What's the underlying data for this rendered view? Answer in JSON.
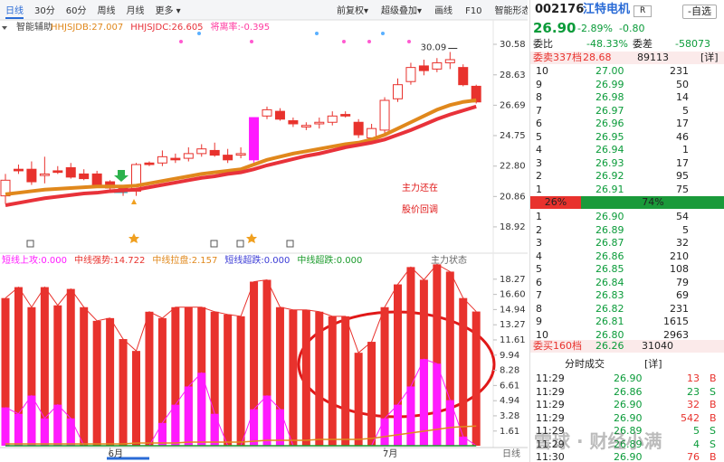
{
  "toolbar": {
    "left": [
      "日线",
      "30分",
      "60分",
      "周线",
      "月线",
      "更多 ▾"
    ],
    "right": [
      "前复权▾",
      "超级叠加▾",
      "画线",
      "F10",
      "智能形态"
    ]
  },
  "chart_data": [
    {
      "type": "candlestick",
      "header": "智能辅助",
      "color": "#e8322d",
      "hollow_up": true,
      "categories": [
        null,
        null,
        null,
        null,
        null,
        null,
        null,
        null,
        "6月",
        null,
        null,
        null,
        null,
        null,
        null,
        null,
        null,
        null,
        null,
        null,
        null,
        null,
        null,
        null,
        null,
        null,
        null,
        null,
        null,
        "7月",
        null,
        null,
        null,
        null,
        null,
        null,
        null
      ],
      "open": [
        20.9,
        22.6,
        22.6,
        22.2,
        22.5,
        22.7,
        22.3,
        22.3,
        21.8,
        21.4,
        21.2,
        23.0,
        23.0,
        23.3,
        23.3,
        23.6,
        23.8,
        23.5,
        23.5,
        23.2,
        26.0,
        26.3,
        25.7,
        25.3,
        25.5,
        25.6,
        26.1,
        25.6,
        24.6,
        25.1,
        27.1,
        28.2,
        29.2,
        29.0,
        29.4,
        29.1,
        27.9
      ],
      "high": [
        22.3,
        22.9,
        23.1,
        23.4,
        22.8,
        23.0,
        22.6,
        22.5,
        21.9,
        21.6,
        23.0,
        23.1,
        23.8,
        23.6,
        24.0,
        24.2,
        24.3,
        23.9,
        24.0,
        25.9,
        26.6,
        26.5,
        25.9,
        25.6,
        25.9,
        26.3,
        26.3,
        25.8,
        25.5,
        27.2,
        28.4,
        29.4,
        29.6,
        29.7,
        30.09,
        29.3,
        28.0
      ],
      "low": [
        20.4,
        22.3,
        21.6,
        21.7,
        22.3,
        22.0,
        21.9,
        21.5,
        21.2,
        20.9,
        20.9,
        22.8,
        22.8,
        23.0,
        23.1,
        23.4,
        23.4,
        23.0,
        23.3,
        23.0,
        25.8,
        25.7,
        25.3,
        25.1,
        25.2,
        25.4,
        25.9,
        24.6,
        24.5,
        24.9,
        26.9,
        28.0,
        28.6,
        28.8,
        29.0,
        27.9,
        26.8
      ],
      "close": [
        21.9,
        22.5,
        21.8,
        22.3,
        22.4,
        22.1,
        22.0,
        21.6,
        21.4,
        21.3,
        22.9,
        22.9,
        23.4,
        23.2,
        23.6,
        23.9,
        23.5,
        23.2,
        23.6,
        25.9,
        26.4,
        25.8,
        25.5,
        25.4,
        25.6,
        26.0,
        26.0,
        24.8,
        25.2,
        27.0,
        28.0,
        29.1,
        28.9,
        29.4,
        29.6,
        28.0,
        26.9
      ],
      "colors": [
        "#e8322d",
        "#e8322d",
        "#e8322d",
        "#e8322d",
        "#e8322d",
        "#e8322d",
        "#e8322d",
        "#e8322d",
        "#e8322d",
        "#e8322d",
        "#e8322d",
        "#e8322d",
        "#e8322d",
        "#e8322d",
        "#e8322d",
        "#e8322d",
        "#e8322d",
        "#e8322d",
        "#e8322d",
        "#ff1aff",
        "#e8322d",
        "#e8322d",
        "#e8322d",
        "#e8322d",
        "#e8322d",
        "#e8322d",
        "#e8322d",
        "#e8322d",
        "#e8322d",
        "#e8322d",
        "#e8322d",
        "#e8322d",
        "#e8322d",
        "#e8322d",
        "#e8322d",
        "#e8322d",
        "#e8322d"
      ],
      "lines": [
        {
          "name": "HHJSJDB:27.007",
          "color": "#e0881c",
          "values": [
            21.0,
            21.1,
            21.2,
            21.3,
            21.35,
            21.4,
            21.45,
            21.5,
            21.5,
            21.5,
            21.55,
            21.7,
            21.85,
            22.0,
            22.15,
            22.3,
            22.4,
            22.5,
            22.6,
            22.9,
            23.2,
            23.4,
            23.6,
            23.75,
            23.9,
            24.05,
            24.2,
            24.3,
            24.5,
            24.8,
            25.2,
            25.6,
            26.0,
            26.4,
            26.7,
            26.9,
            27.007
          ]
        },
        {
          "name": "HHJSJDC:26.605",
          "color": "#e8323a",
          "values": [
            20.3,
            20.45,
            20.6,
            20.75,
            20.85,
            20.95,
            21.05,
            21.1,
            21.2,
            21.25,
            21.3,
            21.45,
            21.6,
            21.75,
            21.9,
            22.05,
            22.15,
            22.3,
            22.4,
            22.6,
            22.85,
            23.05,
            23.25,
            23.45,
            23.6,
            23.8,
            24.0,
            24.15,
            24.3,
            24.5,
            24.8,
            25.1,
            25.45,
            25.8,
            26.1,
            26.35,
            26.605
          ]
        }
      ],
      "extra_label": "将离率:-0.395",
      "ylim": [
        17.53,
        31.1
      ],
      "yticks": [
        30.58,
        28.63,
        26.69,
        24.75,
        {
          "value": 22.8,
          "label": "22.80"
        },
        20.86,
        18.92
      ],
      "annotation": [
        "主力还在",
        "股价回调"
      ]
    },
    {
      "type": "bar",
      "corner_label": "主力状态",
      "series": [
        {
          "name": "短线上攻:0.000",
          "color": "#ff1aff",
          "style": "bar",
          "values": [
            4.2,
            3.5,
            5.5,
            3.0,
            4.5,
            3.0,
            0,
            0,
            0,
            0,
            0,
            0,
            2.5,
            4.5,
            6.5,
            8.0,
            3.5,
            0,
            0,
            4.0,
            5.5,
            4.0,
            0,
            0,
            0,
            0,
            0,
            0,
            0,
            3.0,
            4.5,
            6.5,
            9.5,
            9.0,
            5.0,
            1.0,
            0
          ]
        },
        {
          "name": "中线强势:14.722",
          "color": "#e8322d",
          "style": "bar",
          "values": [
            16.2,
            17.4,
            15.2,
            17.4,
            15.4,
            17.2,
            15.2,
            13.7,
            14.0,
            11.7,
            10.4,
            14.7,
            14.0,
            15.2,
            15.2,
            15.2,
            14.7,
            14.4,
            14.2,
            18.0,
            18.2,
            15.2,
            14.9,
            14.9,
            14.7,
            14.2,
            14.2,
            10.2,
            11.4,
            15.2,
            17.7,
            19.6,
            18.2,
            19.9,
            19.1,
            16.2,
            14.722
          ]
        },
        {
          "name": "中线拉盘:2.157",
          "color": "#e0881c",
          "style": "line",
          "values": [
            0.2,
            0.2,
            0.2,
            0.2,
            0.2,
            0.2,
            0.2,
            0.2,
            0.2,
            0.2,
            0.3,
            0.3,
            0.3,
            0.3,
            0.4,
            0.4,
            0.4,
            0.4,
            0.4,
            0.5,
            0.6,
            0.6,
            0.6,
            0.6,
            0.7,
            0.7,
            0.7,
            0.7,
            0.8,
            1.0,
            1.2,
            1.4,
            1.6,
            1.8,
            2.0,
            2.1,
            2.157
          ]
        },
        {
          "name": "短线超跌:0.000",
          "color": "#3b3bd6"
        },
        {
          "name": "中线超跌:0.000",
          "color": "#1a9a2a",
          "style": "line",
          "values": [
            0,
            0,
            0,
            0,
            0,
            0,
            0,
            0,
            0,
            0,
            0,
            0,
            0,
            0,
            0,
            0,
            0,
            0,
            0,
            0,
            0,
            0,
            0,
            0,
            0,
            0,
            0,
            0,
            0,
            0,
            0,
            0,
            0,
            0,
            0,
            0,
            0
          ]
        }
      ],
      "ylim": [
        0,
        20.73
      ],
      "yticks": [
        18.27,
        {
          "value": 16.6,
          "label": "16.60"
        },
        14.94,
        13.27,
        11.61,
        9.94,
        8.28,
        6.61,
        4.94,
        3.28,
        1.61
      ]
    }
  ],
  "period_label": "日线",
  "quote": {
    "code": "002176",
    "name": "江特电机",
    "badge": "R",
    "watch": "-自选",
    "price": "26.90",
    "change_pct": "-2.89%",
    "change": "-0.80",
    "ratio_label": "委比",
    "ratio": "-48.33%",
    "diff_label": "委差",
    "diff": "-58073",
    "sell_total": [
      "委卖337档",
      "28.68",
      "89113"
    ],
    "detail": "[详]",
    "asks": [
      [
        "10",
        "27.00",
        "231"
      ],
      [
        "9",
        "26.99",
        "50"
      ],
      [
        "8",
        "26.98",
        "14"
      ],
      [
        "7",
        "26.97",
        "5"
      ],
      [
        "6",
        "26.96",
        "17"
      ],
      [
        "5",
        "26.95",
        "46"
      ],
      [
        "4",
        "26.94",
        "1"
      ],
      [
        "3",
        "26.93",
        "17"
      ],
      [
        "2",
        "26.92",
        "95"
      ],
      [
        "1",
        "26.91",
        "75"
      ]
    ],
    "balance": [
      {
        "value": 26,
        "label": "26%"
      },
      {
        "value": 74,
        "label": "74%"
      }
    ],
    "bids": [
      [
        "1",
        "26.90",
        "54"
      ],
      [
        "2",
        "26.89",
        "5"
      ],
      [
        "3",
        "26.87",
        "32"
      ],
      [
        "4",
        "26.86",
        "210"
      ],
      [
        "5",
        "26.85",
        "108"
      ],
      [
        "6",
        "26.84",
        "79"
      ],
      [
        "7",
        "26.83",
        "69"
      ],
      [
        "8",
        "26.82",
        "231"
      ],
      [
        "9",
        "26.81",
        "1615"
      ],
      [
        "10",
        "26.80",
        "2963"
      ]
    ],
    "buy_total": [
      "委买160档",
      "26.26",
      "31040"
    ],
    "trades_title": "分时成交",
    "trades_detail": "[详]",
    "trades": [
      [
        "11:29",
        "26.90",
        "13",
        "B"
      ],
      [
        "11:29",
        "26.86",
        "23",
        "S"
      ],
      [
        "11:29",
        "26.90",
        "32",
        "B"
      ],
      [
        "11:29",
        "26.90",
        "542",
        "B"
      ],
      [
        "11:29",
        "26.89",
        "5",
        "S"
      ],
      [
        "11:29",
        "26.89",
        "4",
        "S"
      ],
      [
        "11:30",
        "26.90",
        "76",
        "B"
      ]
    ],
    "watermark": "雪球 · 财经小满"
  }
}
